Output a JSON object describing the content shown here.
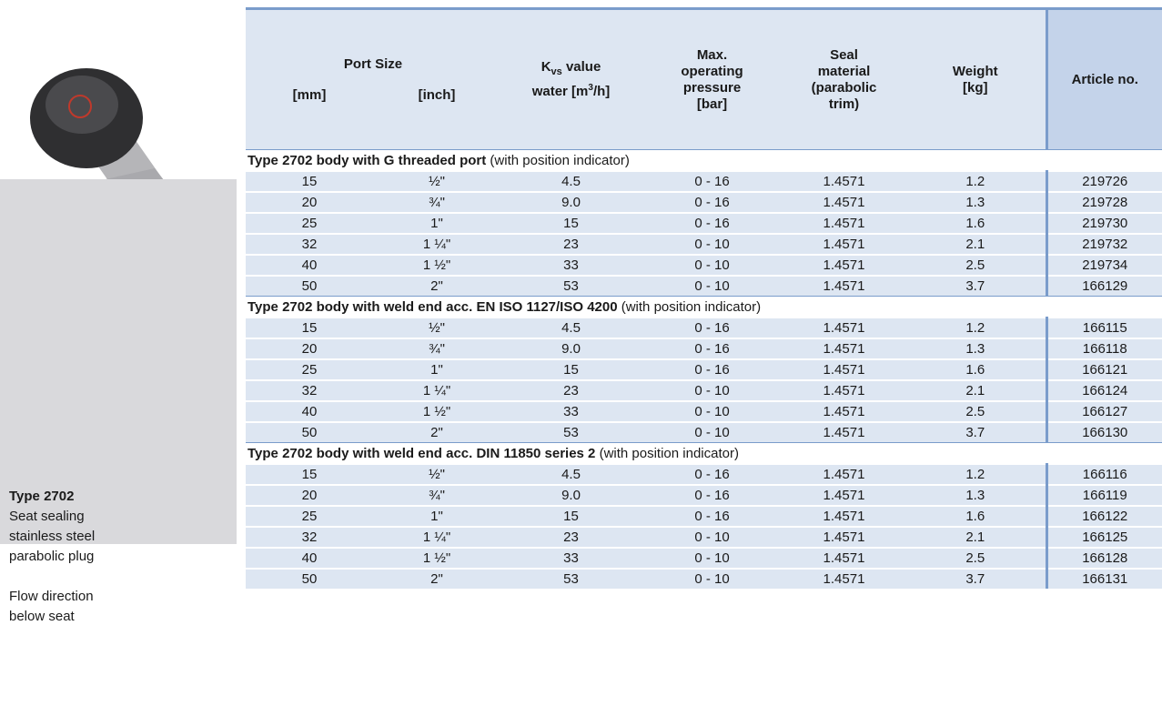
{
  "product": {
    "title": "Type 2702",
    "description": [
      "Seat sealing",
      "stainless steel",
      "parabolic plug",
      "",
      "Flow direction",
      "below seat"
    ]
  },
  "header": {
    "port_size": "Port Size",
    "mm": "[mm]",
    "inch": "[inch]",
    "kvs": {
      "k": "K",
      "sub": "vs",
      "line1": " value",
      "line2a": "water [m",
      "sup": "3",
      "line2b": "/h]"
    },
    "pressure": [
      "Max.",
      "operating",
      "pressure",
      "[bar]"
    ],
    "seal": [
      "Seal",
      "material",
      "(parabolic",
      "trim)"
    ],
    "weight": [
      "Weight",
      "[kg]"
    ],
    "article": "Article no."
  },
  "sections": [
    {
      "title": "Type 2702 body with G threaded port",
      "note": " (with position indicator)",
      "rows": [
        [
          "15",
          "½\"",
          "4.5",
          "0 - 16",
          "1.4571",
          "1.2",
          "219726"
        ],
        [
          "20",
          "¾\"",
          "9.0",
          "0 - 16",
          "1.4571",
          "1.3",
          "219728"
        ],
        [
          "25",
          "1\"",
          "15",
          "0 - 16",
          "1.4571",
          "1.6",
          "219730"
        ],
        [
          "32",
          "1 ¼\"",
          "23",
          "0 - 10",
          "1.4571",
          "2.1",
          "219732"
        ],
        [
          "40",
          "1 ½\"",
          "33",
          "0 - 10",
          "1.4571",
          "2.5",
          "219734"
        ],
        [
          "50",
          "2\"",
          "53",
          "0 - 10",
          "1.4571",
          "3.7",
          "166129"
        ]
      ]
    },
    {
      "title": "Type 2702 body with weld end acc. EN ISO 1127/ISO 4200",
      "note": " (with position indicator)",
      "rows": [
        [
          "15",
          "½\"",
          "4.5",
          "0 - 16",
          "1.4571",
          "1.2",
          "166115"
        ],
        [
          "20",
          "¾\"",
          "9.0",
          "0 - 16",
          "1.4571",
          "1.3",
          "166118"
        ],
        [
          "25",
          "1\"",
          "15",
          "0 - 16",
          "1.4571",
          "1.6",
          "166121"
        ],
        [
          "32",
          "1 ¼\"",
          "23",
          "0 - 10",
          "1.4571",
          "2.1",
          "166124"
        ],
        [
          "40",
          "1 ½\"",
          "33",
          "0 - 10",
          "1.4571",
          "2.5",
          "166127"
        ],
        [
          "50",
          "2\"",
          "53",
          "0 - 10",
          "1.4571",
          "3.7",
          "166130"
        ]
      ]
    },
    {
      "title": "Type 2702 body with weld end acc. DIN 11850 series 2",
      "note": " (with position indicator)",
      "rows": [
        [
          "15",
          "½\"",
          "4.5",
          "0 - 16",
          "1.4571",
          "1.2",
          "166116"
        ],
        [
          "20",
          "¾\"",
          "9.0",
          "0 - 16",
          "1.4571",
          "1.3",
          "166119"
        ],
        [
          "25",
          "1\"",
          "15",
          "0 - 16",
          "1.4571",
          "1.6",
          "166122"
        ],
        [
          "32",
          "1 ¼\"",
          "23",
          "0 - 10",
          "1.4571",
          "2.1",
          "166125"
        ],
        [
          "40",
          "1 ½\"",
          "33",
          "0 - 10",
          "1.4571",
          "2.5",
          "166128"
        ],
        [
          "50",
          "2\"",
          "53",
          "0 - 10",
          "1.4571",
          "3.7",
          "166131"
        ]
      ]
    }
  ]
}
